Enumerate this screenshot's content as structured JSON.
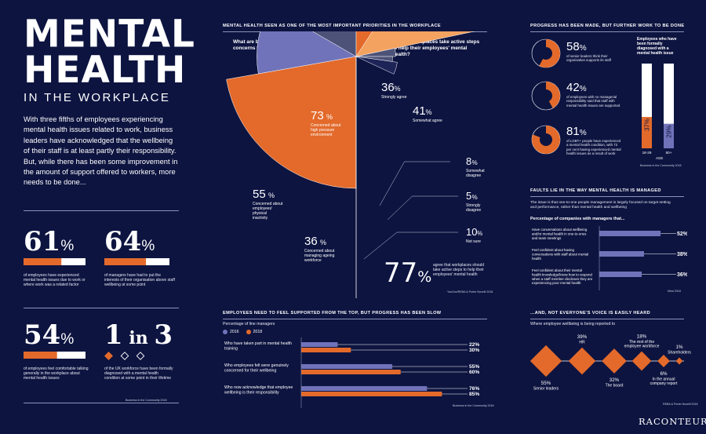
{
  "colors": {
    "background": "#0d1440",
    "orange": "#e36a2b",
    "light_orange": "#f3a25f",
    "purple": "#7073b9",
    "slate": "#4c5278",
    "white": "#ffffff"
  },
  "intro": {
    "title_line1": "MENTAL",
    "title_line2": "HEALTH",
    "subtitle": "IN THE WORKPLACE",
    "paragraph": "With three fifths of employees experiencing mental health issues related to work, business leaders have acknowledged that the wellbeing of their staff is at least partly their responsibility. But, while there has been some improvement in the amount of support offered to workers, more needs to be done..."
  },
  "stats": [
    {
      "number": "61",
      "unit": "%",
      "value": 61,
      "text": "of employees have experienced mental health issues due to work or where work was a related factor"
    },
    {
      "number": "64",
      "unit": "%",
      "value": 64,
      "text": "of managers have had to put the interests of their organisation above staff wellbeing at some point"
    },
    {
      "number": "54",
      "unit": "%",
      "value": 54,
      "text": "of employees feel comfortable talking generally in the workplace about mental health issues"
    },
    {
      "number": "1",
      "mid": "in",
      "number2": "3",
      "text": "of the UK workforce have been formally diagnosed with a mental health condition at some point in their lifetime"
    }
  ],
  "stats_source": "Business in the Community 2018",
  "priorities": {
    "header": "MENTAL HEALTH SEEN AS ONE OF THE MOST IMPORTANT PRIORITIES IN THE WORKPLACE",
    "left_q": "What are business leaders' top concerns for employees?",
    "right_q": "Should workplaces take active steps to help their employees' mental health?",
    "summary_number": "77",
    "summary_unit": "%",
    "summary_text": "agree that workplaces should take active steps to help their employees' mental health",
    "source": "YouGov/REBA & Porter Novelli 2018"
  },
  "progress": {
    "header": "PROGRESS HAS BEEN MADE, BUT FURTHER WORK TO BE DONE",
    "items": [
      {
        "value": 58,
        "number": "58",
        "unit": "%",
        "text": "of senior leaders think their organisation supports its staff"
      },
      {
        "value": 42,
        "number": "42",
        "unit": "%",
        "text": "of employees with no managerial responsibility said that staff with mental health issues are supported"
      },
      {
        "value": 81,
        "number": "81",
        "unit": "%",
        "text": "of LGBT+ people have experienced a mental health condition, with 72 per cent having experienced mental health issues as a result of work"
      }
    ],
    "age_title": "Employees who have been formally diagnosed with a mental health issue",
    "age_xlabel": "AGE",
    "source": "Business in the Community 2018"
  },
  "faults": {
    "header": "FAULTS LIE IN THE WAY MENTAL HEALTH IS MANAGED",
    "intro": "The issue is that one-to-one people management is largely focused on target setting and performance, rather than mental health and wellbeing",
    "subtitle": "Percentage of companies with managers that...",
    "source": "Mind 2018"
  },
  "support": {
    "header": "EMPLOYEES NEED TO FEEL SUPPORTED FROM THE TOP, BUT PROGRESS HAS BEEN SLOW",
    "subtitle": "Percentage of line managers",
    "source": "Business in the Community 2018"
  },
  "voice": {
    "header": "...AND, NOT EVERYONE'S VOICE IS EASILY HEARD",
    "subtitle": "Where employee wellbeing is being reported to",
    "source": "REBA & Porter Novelli 2018"
  },
  "brand": "RACONTEUR",
  "chart_data": [
    {
      "type": "pie",
      "title": "What are business leaders' top concerns for employees?",
      "labels": [
        "Concerned about high pressure environment",
        "Concerned about employees' physical inactivity",
        "Concerned about managing ageing workforce"
      ],
      "values": [
        73,
        55,
        36
      ],
      "unit": "%"
    },
    {
      "type": "pie",
      "title": "Should workplaces take active steps to help their employees' mental health?",
      "labels": [
        "Strongly agree",
        "Somewhat agree",
        "Somewhat disagree",
        "Strongly disagree",
        "Not sure"
      ],
      "values": [
        36,
        41,
        8,
        5,
        10
      ],
      "unit": "%"
    },
    {
      "type": "bar",
      "title": "Employees who have been formally diagnosed with a mental health issue",
      "xlabel": "AGE",
      "categories": [
        "18-29",
        "50+"
      ],
      "values": [
        37,
        29
      ],
      "unit": "%"
    },
    {
      "type": "bar",
      "title": "Percentage of companies with managers that...",
      "categories": [
        "Have conversations about wellbeing and/or mental health in one-to-ones and team meetings",
        "Feel confident about having conversations with staff about mental health",
        "Feel confident about their mental health knowledge/know how to respond when a staff member discloses they are experiencing poor mental health"
      ],
      "values": [
        52,
        38,
        36
      ],
      "unit": "%",
      "xlim": [
        0,
        60
      ]
    },
    {
      "type": "bar",
      "title": "Percentage of line managers",
      "categories": [
        "Who have taken part in mental health training",
        "Who employees felt were genuinely concerned for their wellbeing",
        "Who now acknowledge that employee wellbeing is their responsibility"
      ],
      "series": [
        {
          "name": "2016",
          "values": [
            22,
            55,
            76
          ]
        },
        {
          "name": "2018",
          "values": [
            30,
            60,
            85
          ]
        }
      ],
      "unit": "%",
      "xlim": [
        0,
        90
      ]
    },
    {
      "type": "bar",
      "title": "Where employee wellbeing is being reported to",
      "categories": [
        "Senior leaders",
        "HR",
        "The board",
        "The rest of the employee workforce",
        "In the annual company report",
        "Shareholders"
      ],
      "values": [
        55,
        39,
        32,
        18,
        6,
        1
      ],
      "unit": "%",
      "label_position": [
        "below",
        "above",
        "below",
        "above",
        "below",
        "above"
      ]
    }
  ]
}
